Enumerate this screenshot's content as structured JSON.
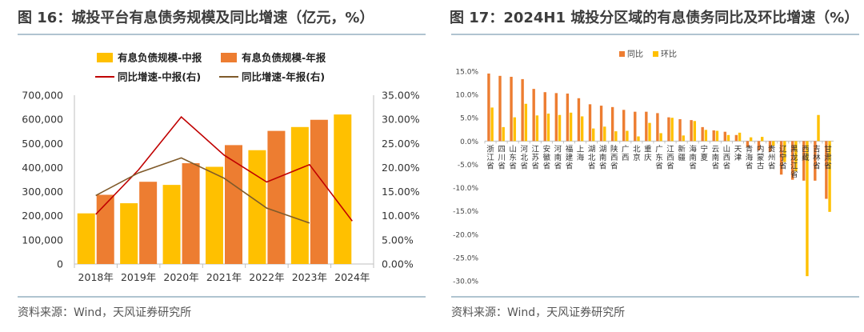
{
  "left": {
    "title": "图 16：城投平台有息债务规模及同比增速（亿元，%）",
    "source": "资料来源：Wind，天风证券研究所",
    "colors": {
      "bar_mid": "#FFC000",
      "bar_annual": "#ED7D31",
      "line_mid": "#C00000",
      "line_annual": "#7F5A2A"
    },
    "chart_data": {
      "type": "bar+line",
      "categories": [
        "2018年",
        "2019年",
        "2020年",
        "2021年",
        "2022年",
        "2023年",
        "2024年"
      ],
      "series": [
        {
          "name": "有息负债规模-中报",
          "type": "bar",
          "axis": "left",
          "values": [
            210000,
            252000,
            328000,
            403000,
            472000,
            568000,
            620000
          ]
        },
        {
          "name": "有息负债规模-年报",
          "type": "bar",
          "axis": "left",
          "values": [
            287000,
            341000,
            418000,
            493000,
            552000,
            598000,
            null
          ]
        },
        {
          "name": "同比增速-中报(右)",
          "type": "line",
          "axis": "right",
          "values": [
            10.3,
            19.5,
            30.5,
            22.6,
            17.0,
            20.6,
            8.9
          ]
        },
        {
          "name": "同比增速-年报(右)",
          "type": "line",
          "axis": "right",
          "values": [
            14.2,
            18.9,
            22.0,
            17.8,
            11.6,
            8.5,
            null
          ]
        }
      ],
      "ylim_left": [
        0,
        700000
      ],
      "ylim_right": [
        0,
        35
      ],
      "yticks_left": [
        "0",
        "100,000",
        "200,000",
        "300,000",
        "400,000",
        "500,000",
        "600,000",
        "700,000"
      ],
      "yticks_right": [
        "0.00%",
        "5.00%",
        "10.00%",
        "15.00%",
        "20.00%",
        "25.00%",
        "30.00%",
        "35.00%"
      ],
      "legend_position": "top",
      "grid": false
    }
  },
  "right": {
    "title": "图 17：2024H1 城投分区域的有息债务同比及环比增速（%）",
    "source": "资料来源：Wind，天风证券研究所",
    "colors": {
      "yoy": "#ED7D31",
      "qoq": "#FFC000"
    },
    "chart_data": {
      "type": "bar",
      "categories": [
        "浙江省",
        "四川省",
        "山东省",
        "河北省",
        "江苏省",
        "安徽省",
        "河南省",
        "福建省",
        "上海",
        "湖北省",
        "湖南省",
        "陕西省",
        "广西",
        "北京",
        "重庆",
        "广东省",
        "江西省",
        "新疆",
        "海南省",
        "宁夏",
        "云南省",
        "山西省",
        "天津",
        "青海省",
        "内蒙古",
        "贵州省",
        "辽宁省",
        "黑龙江省",
        "西藏",
        "吉林省",
        "甘肃省"
      ],
      "series": [
        {
          "name": "同比",
          "values": [
            14.5,
            14.0,
            13.8,
            13.3,
            11.2,
            10.5,
            10.3,
            10.2,
            9.2,
            7.9,
            7.6,
            7.3,
            6.7,
            6.3,
            6.3,
            6.0,
            5.1,
            4.7,
            4.5,
            3.0,
            2.3,
            2.0,
            1.3,
            -1.3,
            -2.0,
            -2.3,
            -7.2,
            -8.3,
            -8.5,
            -8.5,
            -12.4
          ]
        },
        {
          "name": "环比",
          "values": [
            7.2,
            3.0,
            5.1,
            8.0,
            5.5,
            5.9,
            5.6,
            6.1,
            5.3,
            2.7,
            3.1,
            2.1,
            2.2,
            1.0,
            3.9,
            1.7,
            5.0,
            1.2,
            4.3,
            2.4,
            2.2,
            1.3,
            1.8,
            0.8,
            0.9,
            -1.0,
            -4.5,
            -6.5,
            -29.0,
            5.6,
            -15.2
          ]
        }
      ],
      "ylim": [
        -30,
        15
      ],
      "yticks": [
        "-30.0%",
        "-25.0%",
        "-20.0%",
        "-15.0%",
        "-10.0%",
        "-5.0%",
        "0.0%",
        "5.0%",
        "10.0%",
        "15.0%"
      ],
      "legend_position": "top",
      "grid": false
    }
  }
}
